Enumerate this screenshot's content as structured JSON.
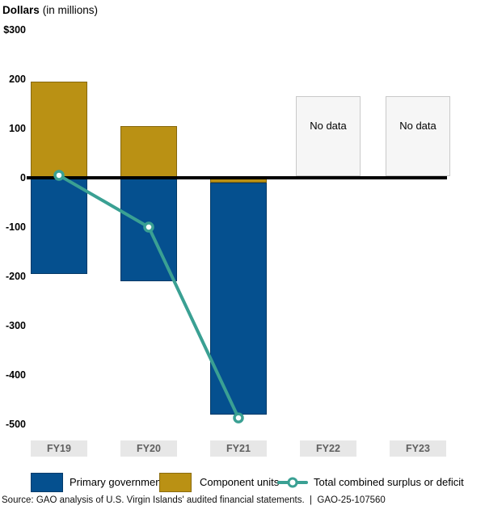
{
  "title": {
    "bold": "Dollars",
    "units": "(in millions)"
  },
  "source_note": "Source: GAO analysis of U.S. Virgin Islands' audited financial statements.  |  GAO-25-107560",
  "colors": {
    "primary_government": "#05508f",
    "component_units": "#ba9114",
    "total_line": "#3aa093",
    "zero_line": "#000000",
    "tick_box_bg": "#e7e7e7",
    "tick_text": "#5f5f5f",
    "no_data_bg": "#f6f6f6",
    "no_data_border": "#c9c9c9"
  },
  "chart_data": {
    "type": "bar",
    "subtype": "stacked-bar-with-line-overlay",
    "title": "Dollars (in millions)",
    "xlabel": "",
    "ylabel": "Dollars (in millions)",
    "ylim": [
      -500,
      300
    ],
    "grid": false,
    "legend_position": "bottom",
    "categories": [
      "FY19",
      "FY20",
      "FY21",
      "FY22",
      "FY23"
    ],
    "series": [
      {
        "id": "component_units",
        "name": "Component units",
        "type": "bar",
        "color": "#ba9114",
        "values": [
          195,
          105,
          -10,
          null,
          null
        ]
      },
      {
        "id": "primary_government",
        "name": "Primary government",
        "type": "bar",
        "color": "#05508f",
        "values": [
          -195,
          -210,
          -470,
          null,
          null
        ]
      },
      {
        "id": "total_combined",
        "name": "Total combined surplus or deficit",
        "type": "line",
        "color": "#3aa093",
        "marker": "open-circle",
        "values": [
          5,
          -100,
          -487,
          null,
          null
        ]
      }
    ],
    "no_data": {
      "label": "No data",
      "categories": [
        "FY22",
        "FY23"
      ],
      "box_top_value": 165
    },
    "y_ticks": [
      {
        "label": "$300",
        "value": 300
      },
      {
        "label": "200",
        "value": 200
      },
      {
        "label": "100",
        "value": 100
      },
      {
        "label": "0",
        "value": 0
      },
      {
        "label": "-100",
        "value": -100
      },
      {
        "label": "-200",
        "value": -200
      },
      {
        "label": "-300",
        "value": -300
      },
      {
        "label": "-400",
        "value": -400
      },
      {
        "label": "-500",
        "value": -500
      }
    ]
  }
}
